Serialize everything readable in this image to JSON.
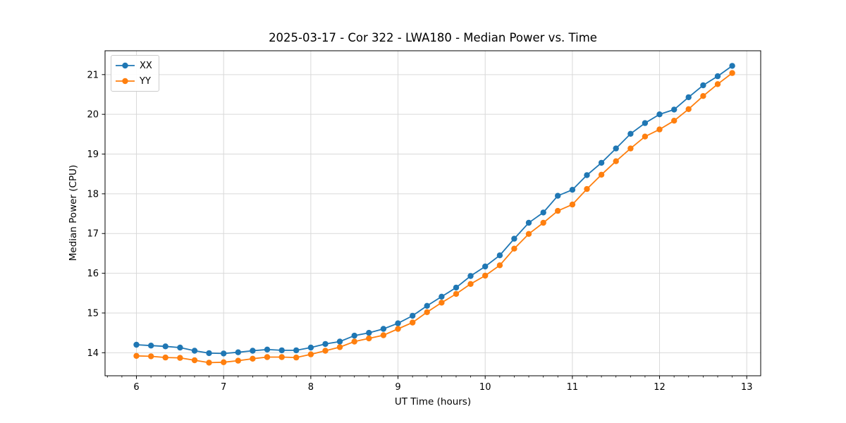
{
  "figure": {
    "title": "2025-03-17 - Cor 322 - LWA180 - Median Power vs. Time"
  },
  "chart_data": {
    "type": "line",
    "title": "2025-03-17 - Cor 322 - LWA180 - Median Power vs. Time",
    "xlabel": "UT Time (hours)",
    "ylabel": "Median Power (CPU)",
    "xlim": [
      5.64,
      13.16
    ],
    "ylim": [
      13.42,
      21.6
    ],
    "xticks": [
      6,
      7,
      8,
      9,
      10,
      11,
      12,
      13
    ],
    "yticks": [
      14,
      15,
      16,
      17,
      18,
      19,
      20,
      21
    ],
    "x_minor_tick_step_hours": 0.1667,
    "grid": true,
    "legend": {
      "position": "upper left",
      "entries": [
        "XX",
        "YY"
      ]
    },
    "x": [
      6.0,
      6.167,
      6.333,
      6.5,
      6.667,
      6.833,
      7.0,
      7.167,
      7.333,
      7.5,
      7.667,
      7.833,
      8.0,
      8.167,
      8.333,
      8.5,
      8.667,
      8.833,
      9.0,
      9.167,
      9.333,
      9.5,
      9.667,
      9.833,
      10.0,
      10.167,
      10.333,
      10.5,
      10.667,
      10.833,
      11.0,
      11.167,
      11.333,
      11.5,
      11.667,
      11.833,
      12.0,
      12.167,
      12.333,
      12.5,
      12.667,
      12.833
    ],
    "series": [
      {
        "name": "XX",
        "color": "#1f77b4",
        "marker": "circle",
        "values": [
          14.2,
          14.18,
          14.16,
          14.13,
          14.05,
          13.99,
          13.98,
          14.01,
          14.05,
          14.08,
          14.06,
          14.06,
          14.13,
          14.22,
          14.28,
          14.43,
          14.5,
          14.6,
          14.74,
          14.93,
          15.18,
          15.41,
          15.64,
          15.93,
          16.17,
          16.45,
          16.87,
          17.27,
          17.53,
          17.95,
          18.1,
          18.47,
          18.78,
          19.14,
          19.51,
          19.78,
          20.0,
          20.12,
          20.43,
          20.73,
          20.96,
          21.22
        ]
      },
      {
        "name": "YY",
        "color": "#ff7f0e",
        "marker": "circle",
        "values": [
          13.92,
          13.91,
          13.88,
          13.87,
          13.81,
          13.75,
          13.76,
          13.8,
          13.85,
          13.89,
          13.89,
          13.88,
          13.96,
          14.05,
          14.14,
          14.28,
          14.36,
          14.44,
          14.6,
          14.76,
          15.02,
          15.26,
          15.48,
          15.73,
          15.94,
          16.2,
          16.62,
          16.99,
          17.27,
          17.57,
          17.73,
          18.12,
          18.48,
          18.82,
          19.14,
          19.44,
          19.62,
          19.84,
          20.13,
          20.46,
          20.76,
          21.04
        ]
      }
    ]
  },
  "style_colors": {
    "grid": "#d9d9d9",
    "spine": "#000000",
    "background": "#ffffff",
    "legend_border": "#cccccc"
  }
}
